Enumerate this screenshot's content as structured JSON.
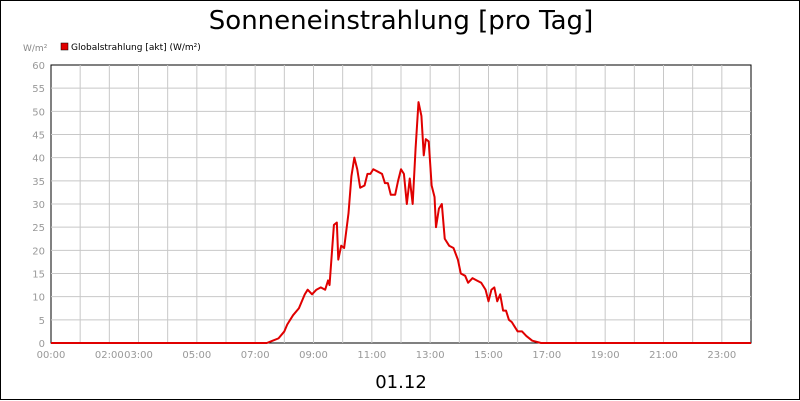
{
  "chart_data": {
    "type": "line",
    "title": "Sonneneinstrahlung [pro Tag]",
    "ylabel": "W/m²",
    "xlabel": "01.12",
    "ylim": [
      0,
      60
    ],
    "xlim": [
      0,
      24
    ],
    "grid": true,
    "legend_position": "top-left",
    "y_ticks": [
      "0",
      "5",
      "10",
      "15",
      "20",
      "25",
      "30",
      "35",
      "40",
      "45",
      "50",
      "55",
      "60"
    ],
    "x_ticks": [
      {
        "x": 0,
        "label": "00:00"
      },
      {
        "x": 2,
        "label": "02:00"
      },
      {
        "x": 3,
        "label": "03:00"
      },
      {
        "x": 5,
        "label": "05:00"
      },
      {
        "x": 7,
        "label": "07:00"
      },
      {
        "x": 9,
        "label": "09:00"
      },
      {
        "x": 11,
        "label": "11:00"
      },
      {
        "x": 13,
        "label": "13:00"
      },
      {
        "x": 15,
        "label": "15:00"
      },
      {
        "x": 17,
        "label": "17:00"
      },
      {
        "x": 19,
        "label": "19:00"
      },
      {
        "x": 21,
        "label": "21:00"
      },
      {
        "x": 23,
        "label": "23:00"
      }
    ],
    "series": [
      {
        "name": "Globalstrahlung [akt] (W/m²)",
        "color": "#e00000",
        "points": [
          [
            0,
            0
          ],
          [
            7.4,
            0
          ],
          [
            7.6,
            0.5
          ],
          [
            7.8,
            1
          ],
          [
            8.0,
            2.5
          ],
          [
            8.1,
            4
          ],
          [
            8.3,
            6
          ],
          [
            8.5,
            7.5
          ],
          [
            8.7,
            10.5
          ],
          [
            8.8,
            11.5
          ],
          [
            8.95,
            10.5
          ],
          [
            9.1,
            11.5
          ],
          [
            9.25,
            12
          ],
          [
            9.4,
            11.5
          ],
          [
            9.5,
            13.5
          ],
          [
            9.55,
            12.5
          ],
          [
            9.7,
            25.5
          ],
          [
            9.8,
            26
          ],
          [
            9.85,
            18
          ],
          [
            9.95,
            21
          ],
          [
            10.05,
            20.5
          ],
          [
            10.2,
            28
          ],
          [
            10.3,
            36
          ],
          [
            10.4,
            40
          ],
          [
            10.5,
            37.5
          ],
          [
            10.6,
            33.5
          ],
          [
            10.75,
            34
          ],
          [
            10.85,
            36.5
          ],
          [
            10.95,
            36.5
          ],
          [
            11.05,
            37.5
          ],
          [
            11.2,
            37
          ],
          [
            11.35,
            36.5
          ],
          [
            11.45,
            34.5
          ],
          [
            11.55,
            34.5
          ],
          [
            11.65,
            32
          ],
          [
            11.8,
            32
          ],
          [
            11.9,
            35
          ],
          [
            12.0,
            37.5
          ],
          [
            12.1,
            36.5
          ],
          [
            12.2,
            30
          ],
          [
            12.3,
            35.5
          ],
          [
            12.4,
            30
          ],
          [
            12.5,
            42
          ],
          [
            12.6,
            52
          ],
          [
            12.7,
            49
          ],
          [
            12.78,
            40.5
          ],
          [
            12.85,
            44
          ],
          [
            12.95,
            43.5
          ],
          [
            13.05,
            34
          ],
          [
            13.15,
            31.5
          ],
          [
            13.2,
            25
          ],
          [
            13.3,
            29
          ],
          [
            13.4,
            30
          ],
          [
            13.5,
            22.5
          ],
          [
            13.65,
            21
          ],
          [
            13.8,
            20.5
          ],
          [
            13.95,
            18
          ],
          [
            14.05,
            15
          ],
          [
            14.2,
            14.5
          ],
          [
            14.3,
            13
          ],
          [
            14.45,
            14
          ],
          [
            14.6,
            13.5
          ],
          [
            14.75,
            13
          ],
          [
            14.9,
            11.5
          ],
          [
            15.0,
            9
          ],
          [
            15.1,
            11.5
          ],
          [
            15.2,
            12
          ],
          [
            15.3,
            9
          ],
          [
            15.4,
            10.5
          ],
          [
            15.5,
            7
          ],
          [
            15.6,
            7
          ],
          [
            15.7,
            5
          ],
          [
            15.8,
            4.5
          ],
          [
            15.9,
            3.5
          ],
          [
            16.0,
            2.5
          ],
          [
            16.15,
            2.5
          ],
          [
            16.3,
            1.5
          ],
          [
            16.5,
            0.5
          ],
          [
            16.8,
            0
          ],
          [
            24,
            0
          ]
        ]
      }
    ]
  }
}
